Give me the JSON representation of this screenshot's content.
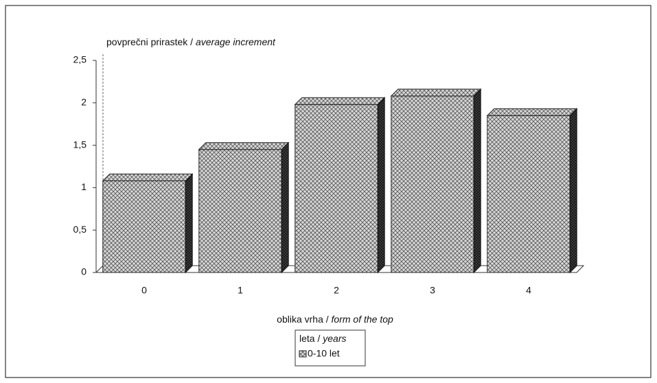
{
  "chart_data": {
    "type": "bar3d",
    "y_label": "povprečni prirastek /",
    "y_label_translation": "average increment",
    "x_label": "oblika vrha /",
    "x_label_translation": "form of the top",
    "legend_title": "leta /",
    "legend_title_translation": "years",
    "categories": [
      "0",
      "1",
      "2",
      "3",
      "4"
    ],
    "series": [
      {
        "name": "0-10 let",
        "color": "#b0b0b0",
        "values": [
          1.08,
          1.45,
          1.98,
          2.08,
          1.85
        ]
      }
    ],
    "ylim": [
      0,
      2.5
    ],
    "yticks": [
      0,
      {
        "value": 0.5,
        "label": "0,5"
      },
      1,
      {
        "value": 1.5,
        "label": "1,5"
      },
      2,
      {
        "value": 2.5,
        "label": "2,5"
      }
    ],
    "grid": false
  }
}
